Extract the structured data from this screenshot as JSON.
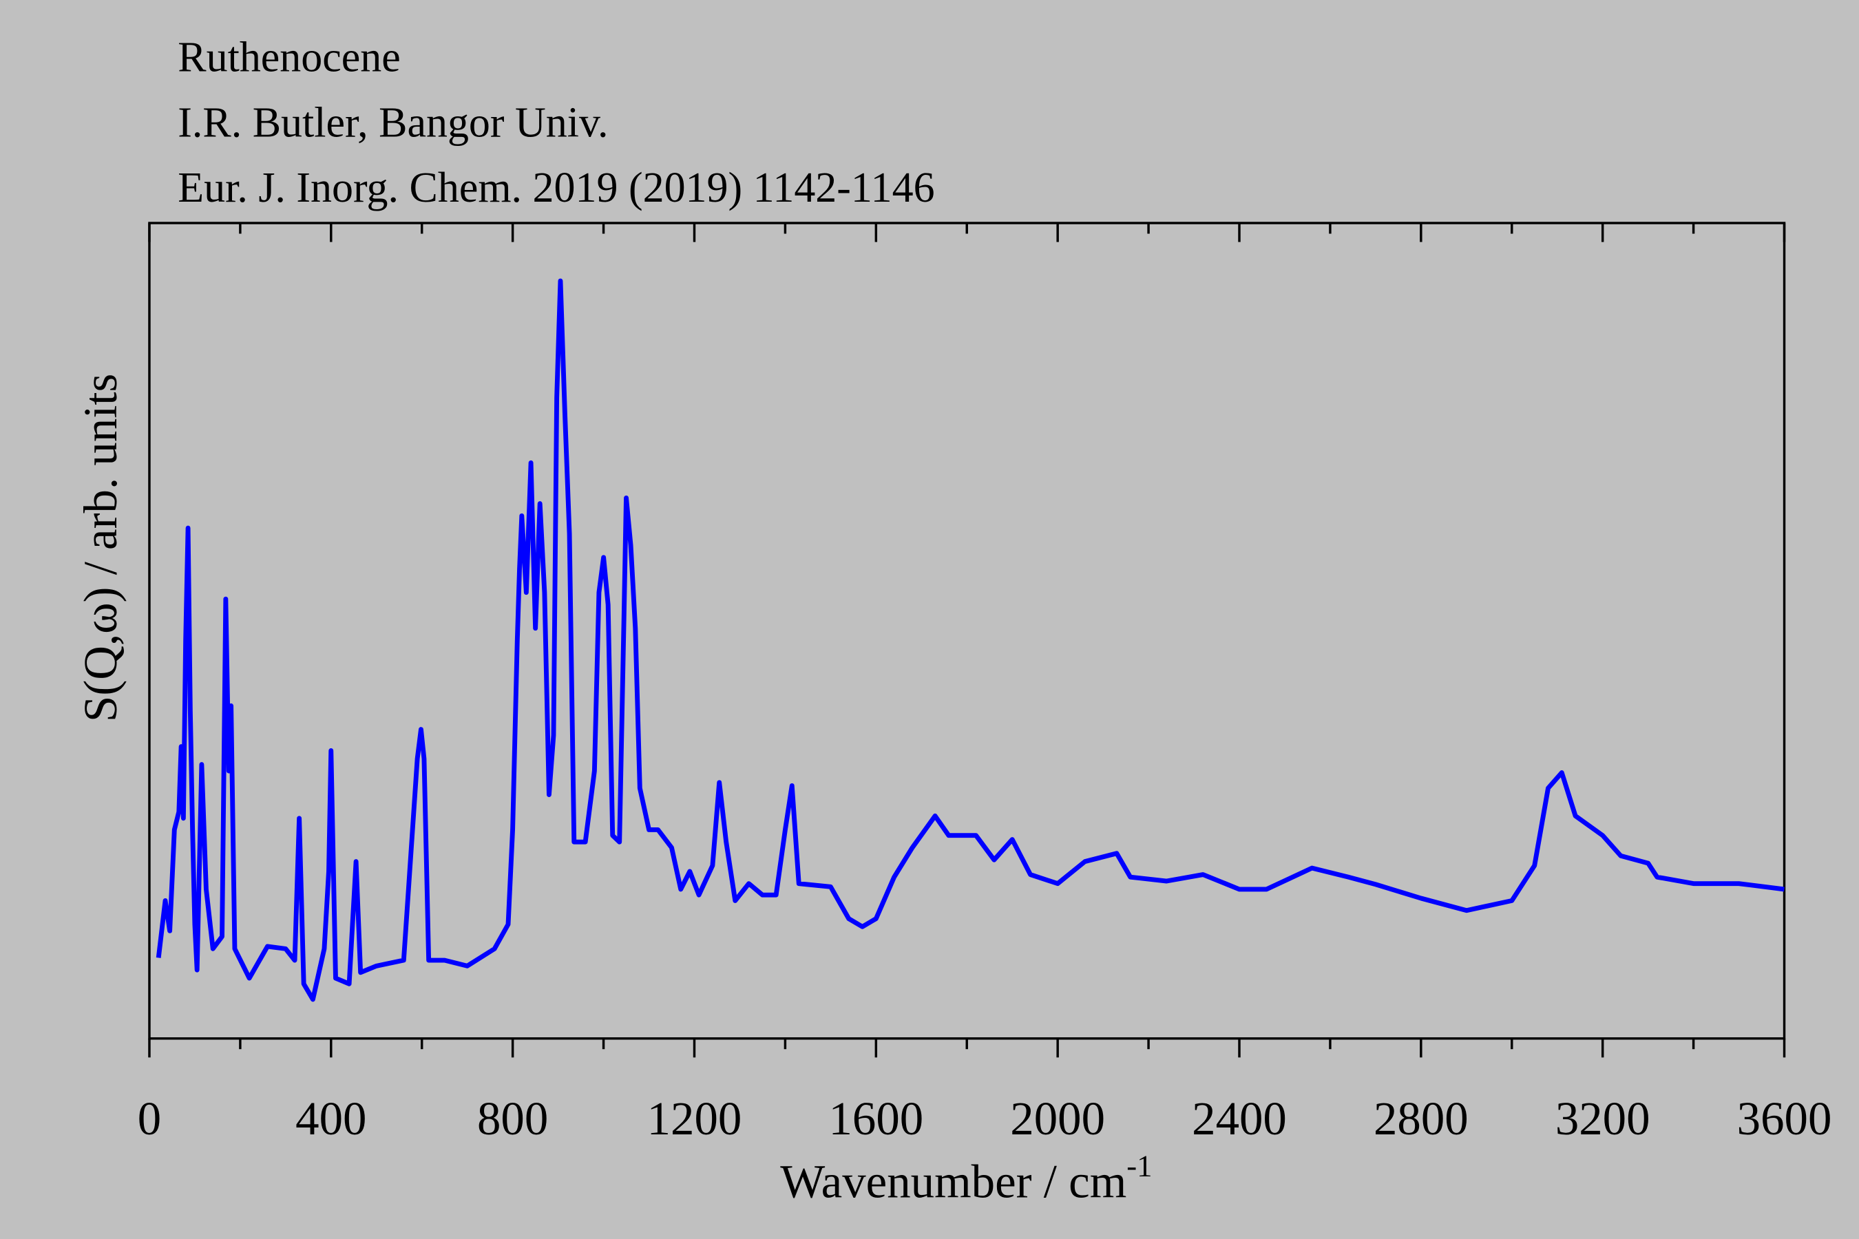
{
  "chart_data": {
    "type": "line",
    "title": "Ruthenocene",
    "subtitle": "I.R. Butler, Bangor Univ.",
    "reference": "Eur. J. Inorg. Chem. 2019 (2019) 1142-1146",
    "x_label": "Wavenumber / cm",
    "x_label_superscript": "-1",
    "y_label": "S(Q,ω) / arb. units",
    "xlim": [
      0,
      3600
    ],
    "xticks": [
      0,
      400,
      800,
      1200,
      1600,
      2000,
      2400,
      2800,
      3200,
      3600
    ],
    "xminor_ticks": [
      200,
      600,
      1000,
      1400,
      1800,
      2200,
      2600,
      3000,
      3400
    ],
    "ylim": [
      0,
      100
    ],
    "series": [
      {
        "color": "#0000ff",
        "x": [
          20,
          35,
          45,
          55,
          65,
          70,
          75,
          80,
          85,
          90,
          95,
          100,
          105,
          115,
          125,
          140,
          160,
          168,
          175,
          180,
          188,
          220,
          260,
          300,
          320,
          330,
          340,
          360,
          385,
          395,
          400,
          410,
          440,
          455,
          465,
          500,
          560,
          590,
          598,
          605,
          615,
          650,
          700,
          760,
          790,
          800,
          810,
          815,
          820,
          830,
          840,
          850,
          860,
          870,
          880,
          890,
          897,
          905,
          915,
          925,
          935,
          960,
          980,
          990,
          1000,
          1010,
          1020,
          1035,
          1045,
          1050,
          1060,
          1070,
          1080,
          1100,
          1120,
          1150,
          1170,
          1190,
          1210,
          1240,
          1255,
          1270,
          1290,
          1320,
          1350,
          1380,
          1400,
          1415,
          1430,
          1500,
          1540,
          1570,
          1600,
          1640,
          1680,
          1730,
          1760,
          1820,
          1860,
          1900,
          1940,
          2000,
          2060,
          2130,
          2160,
          2240,
          2320,
          2400,
          2460,
          2560,
          2640,
          2700,
          2800,
          2900,
          3000,
          3050,
          3080,
          3110,
          3140,
          3200,
          3240,
          3300,
          3320,
          3400,
          3500,
          3600
        ],
        "values": [
          9.9,
          16.9,
          13.2,
          25.6,
          27.8,
          35.8,
          27.0,
          48.8,
          62.6,
          40.1,
          25.6,
          14.0,
          8.4,
          33.6,
          18.3,
          11.0,
          12.5,
          53.9,
          32.8,
          40.8,
          11.0,
          7.4,
          11.3,
          11.0,
          9.6,
          27.0,
          6.7,
          4.8,
          11.0,
          20.5,
          35.3,
          7.4,
          6.7,
          21.7,
          8.1,
          8.9,
          9.6,
          34.3,
          37.9,
          34.3,
          9.6,
          9.6,
          8.9,
          11.0,
          14.0,
          25.6,
          48.8,
          57.6,
          64.1,
          54.7,
          70.6,
          50.3,
          65.6,
          54.7,
          29.9,
          37.2,
          78.6,
          92.9,
          76.5,
          61.9,
          24.1,
          24.1,
          32.8,
          54.7,
          59.0,
          53.2,
          24.9,
          24.1,
          51.7,
          66.3,
          60.5,
          50.3,
          30.7,
          25.6,
          25.6,
          23.4,
          18.3,
          20.5,
          17.6,
          21.2,
          31.4,
          24.1,
          16.9,
          19.0,
          17.6,
          17.6,
          25.6,
          31.0,
          19.0,
          18.6,
          14.7,
          13.7,
          14.7,
          19.8,
          23.4,
          27.3,
          24.9,
          24.9,
          21.9,
          24.4,
          20.1,
          19.0,
          21.7,
          22.7,
          19.8,
          19.3,
          20.1,
          18.3,
          18.3,
          20.9,
          19.8,
          18.9,
          17.2,
          15.7,
          16.9,
          21.2,
          30.7,
          32.6,
          27.3,
          24.9,
          22.4,
          21.5,
          19.8,
          19.0,
          19.0,
          18.3
        ]
      }
    ]
  }
}
